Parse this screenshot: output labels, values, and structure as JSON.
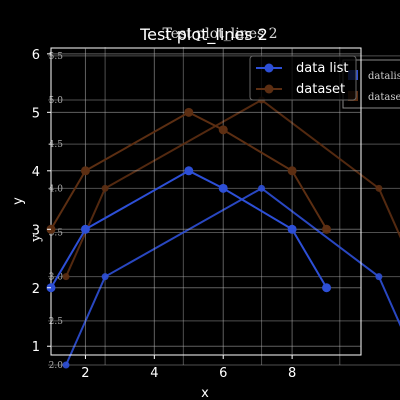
{
  "colors": {
    "background": "#000000",
    "foreground": "#ffffff",
    "grid": "#b0b0b0",
    "data_list": "#2d4fd6",
    "dataset": "#5c2e12"
  },
  "chart_data": [
    {
      "type": "line",
      "title": "Test plot_lines 2",
      "xlabel": "x",
      "ylabel": "y",
      "xlim": [
        1,
        10
      ],
      "ylim": [
        0.85,
        6.1
      ],
      "xticks": [
        "2",
        "4",
        "6",
        "8"
      ],
      "yticks": [
        "1",
        "2",
        "3",
        "4",
        "5",
        "6"
      ],
      "grid": true,
      "legend": {
        "placement": "upper-right",
        "entries": [
          "data list",
          "dataset"
        ]
      },
      "series": [
        {
          "name": "data list",
          "x": [
            1,
            2,
            5,
            6,
            8,
            9
          ],
          "y": [
            2,
            3,
            4,
            3.7,
            3,
            2
          ]
        },
        {
          "name": "dataset",
          "x": [
            1,
            2,
            5,
            6,
            8,
            9
          ],
          "y": [
            3,
            4,
            5,
            4.7,
            4,
            3
          ]
        }
      ]
    },
    {
      "type": "line",
      "title": "Test plot_lines 2",
      "xlabel": "",
      "ylabel": "y",
      "xlim": [
        1,
        10
      ],
      "ylim": [
        2.0,
        5.6
      ],
      "xticks": [],
      "yticks": [
        "2.0",
        "2.5",
        "3.0",
        "3.5",
        "4.0",
        "4.5",
        "5.0",
        "5.5"
      ],
      "grid": true,
      "legend": {
        "placement": "upper-right",
        "entries": [
          "datalist",
          "dataset"
        ]
      },
      "series": [
        {
          "name": "datalist",
          "x": [
            1,
            2,
            6,
            9,
            10
          ],
          "y": [
            2.0,
            3.0,
            4.0,
            3.0,
            2.0
          ]
        },
        {
          "name": "dataset",
          "x": [
            1,
            2,
            6,
            9,
            10
          ],
          "y": [
            3.0,
            4.0,
            5.0,
            4.0,
            3.0
          ]
        }
      ]
    }
  ]
}
